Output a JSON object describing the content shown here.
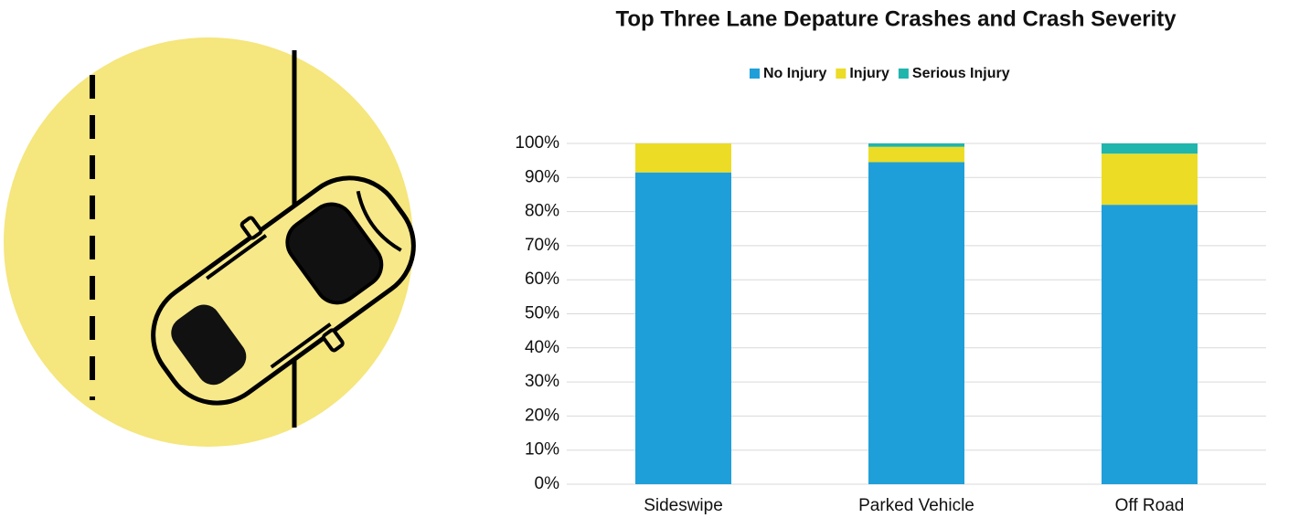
{
  "chart_data": {
    "type": "stacked_bar",
    "title": "Top Three Lane Depature Crashes and Crash Severity",
    "categories": [
      "Sideswipe",
      "Parked Vehicle",
      "Off Road"
    ],
    "series": [
      {
        "name": "No Injury",
        "color": "#1f9fd9",
        "values": [
          91.5,
          94.5,
          82
        ]
      },
      {
        "name": "Injury",
        "color": "#ecdc25",
        "values": [
          8.5,
          4.5,
          15
        ]
      },
      {
        "name": "Serious Injury",
        "color": "#20b5ad",
        "values": [
          0,
          1,
          3
        ]
      }
    ],
    "ylim": [
      0,
      100
    ],
    "yticks": [
      {
        "value": 0,
        "label": "0%"
      },
      {
        "value": 10,
        "label": "10%"
      },
      {
        "value": 20,
        "label": "20%"
      },
      {
        "value": 30,
        "label": "30%"
      },
      {
        "value": 40,
        "label": "40%"
      },
      {
        "value": 50,
        "label": "50%"
      },
      {
        "value": 60,
        "label": "60%"
      },
      {
        "value": 70,
        "label": "70%"
      },
      {
        "value": 80,
        "label": "80%"
      },
      {
        "value": 90,
        "label": "90%"
      },
      {
        "value": 100,
        "label": "100%"
      }
    ],
    "grid": true,
    "legend": "top"
  }
}
